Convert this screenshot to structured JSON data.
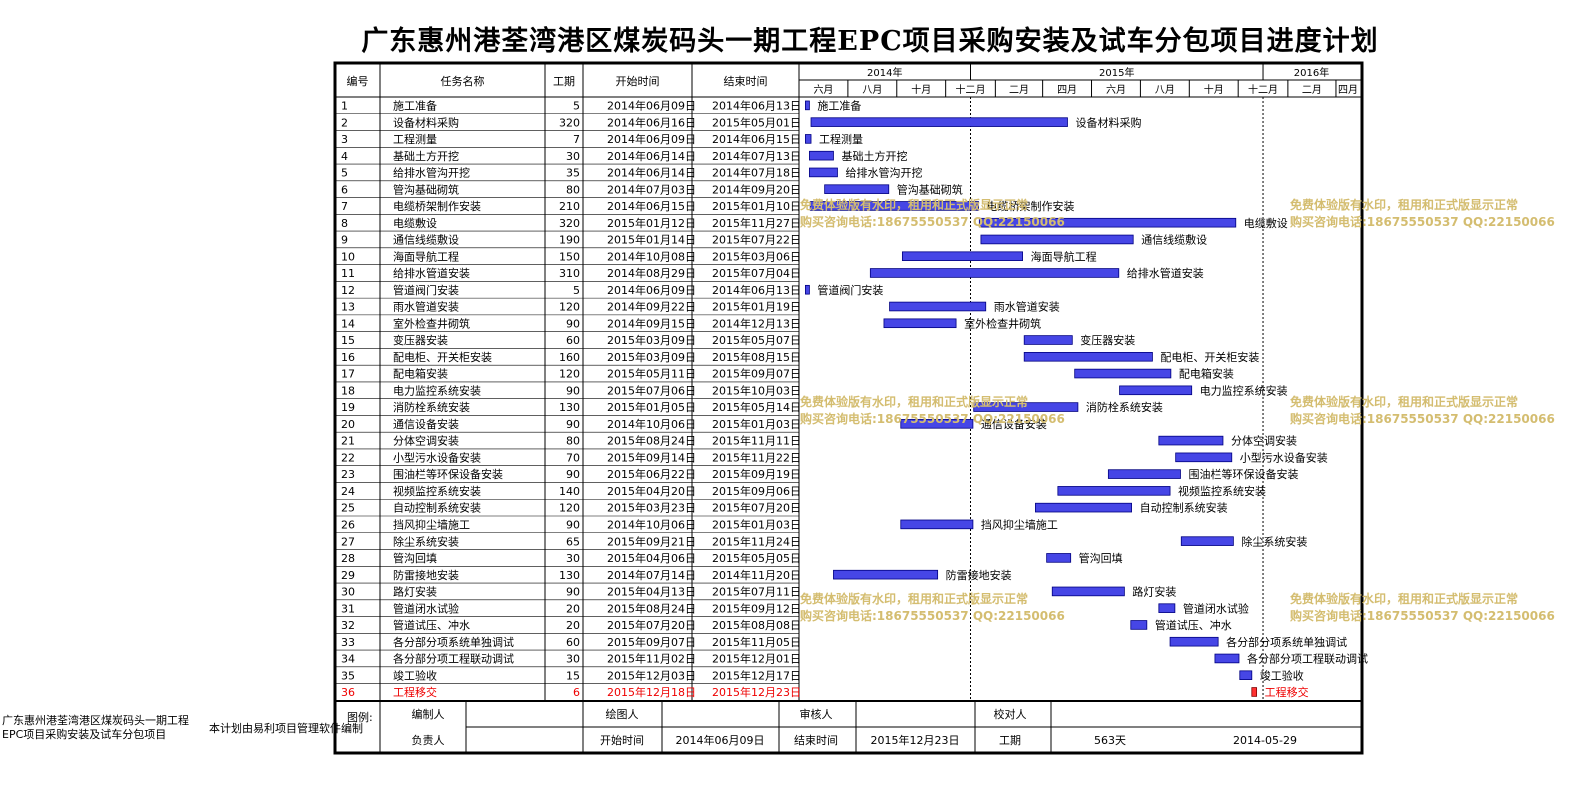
{
  "title": "广东惠州港荃湾港区煤炭码头一期工程EPC项目采购安装及试车分包项目进度计划",
  "headers": {
    "id": "编号",
    "name": "任务名称",
    "duration": "工期",
    "start": "开始时间",
    "end": "结束时间"
  },
  "chart_data": {
    "type": "gantt",
    "years": [
      {
        "label": "2014年",
        "from": "2014-06-01",
        "to": "2015-01-01"
      },
      {
        "label": "2015年",
        "from": "2015-01-01",
        "to": "2016-01-01"
      },
      {
        "label": "2016年",
        "from": "2016-01-01",
        "to": "2016-05-01"
      }
    ],
    "months": [
      {
        "label": "六月",
        "from": "2014-06-01",
        "to": "2014-08-01"
      },
      {
        "label": "八月",
        "from": "2014-08-01",
        "to": "2014-10-01"
      },
      {
        "label": "十月",
        "from": "2014-10-01",
        "to": "2014-12-01"
      },
      {
        "label": "十二月",
        "from": "2014-12-01",
        "to": "2015-02-01"
      },
      {
        "label": "二月",
        "from": "2015-02-01",
        "to": "2015-04-01"
      },
      {
        "label": "四月",
        "from": "2015-04-01",
        "to": "2015-06-01"
      },
      {
        "label": "六月",
        "from": "2015-06-01",
        "to": "2015-08-01"
      },
      {
        "label": "八月",
        "from": "2015-08-01",
        "to": "2015-10-01"
      },
      {
        "label": "十月",
        "from": "2015-10-01",
        "to": "2015-12-01"
      },
      {
        "label": "十二月",
        "from": "2015-12-01",
        "to": "2016-02-01"
      },
      {
        "label": "二月",
        "from": "2016-02-01",
        "to": "2016-04-01"
      },
      {
        "label": "四月",
        "from": "2016-04-01",
        "to": "2016-05-01"
      }
    ],
    "tasks": [
      {
        "id": "1",
        "name": "施工准备",
        "duration": 5,
        "start": "2014年06月09日",
        "end": "2014年06月13日"
      },
      {
        "id": "2",
        "name": "设备材料采购",
        "duration": 320,
        "start": "2014年06月16日",
        "end": "2015年05月01日"
      },
      {
        "id": "3",
        "name": "工程测量",
        "duration": 7,
        "start": "2014年06月09日",
        "end": "2014年06月15日"
      },
      {
        "id": "4",
        "name": "基础土方开挖",
        "duration": 30,
        "start": "2014年06月14日",
        "end": "2014年07月13日"
      },
      {
        "id": "5",
        "name": "给排水管沟开挖",
        "duration": 35,
        "start": "2014年06月14日",
        "end": "2014年07月18日"
      },
      {
        "id": "6",
        "name": "管沟基础砌筑",
        "duration": 80,
        "start": "2014年07月03日",
        "end": "2014年09月20日"
      },
      {
        "id": "7",
        "name": "电缆桥架制作安装",
        "duration": 210,
        "start": "2014年06月15日",
        "end": "2015年01月10日"
      },
      {
        "id": "8",
        "name": "电缆敷设",
        "duration": 320,
        "start": "2015年01月12日",
        "end": "2015年11月27日"
      },
      {
        "id": "9",
        "name": "通信线缆敷设",
        "duration": 190,
        "start": "2015年01月14日",
        "end": "2015年07月22日"
      },
      {
        "id": "10",
        "name": "海面导航工程",
        "duration": 150,
        "start": "2014年10月08日",
        "end": "2015年03月06日"
      },
      {
        "id": "11",
        "name": "给排水管道安装",
        "duration": 310,
        "start": "2014年08月29日",
        "end": "2015年07月04日"
      },
      {
        "id": "12",
        "name": "管道阀门安装",
        "duration": 5,
        "start": "2014年06月09日",
        "end": "2014年06月13日"
      },
      {
        "id": "13",
        "name": "雨水管道安装",
        "duration": 120,
        "start": "2014年09月22日",
        "end": "2015年01月19日"
      },
      {
        "id": "14",
        "name": "室外检查井砌筑",
        "duration": 90,
        "start": "2014年09月15日",
        "end": "2014年12月13日"
      },
      {
        "id": "15",
        "name": "变压器安装",
        "duration": 60,
        "start": "2015年03月09日",
        "end": "2015年05月07日"
      },
      {
        "id": "16",
        "name": "配电柜、开关柜安装",
        "duration": 160,
        "start": "2015年03月09日",
        "end": "2015年08月15日"
      },
      {
        "id": "17",
        "name": "配电箱安装",
        "duration": 120,
        "start": "2015年05月11日",
        "end": "2015年09月07日"
      },
      {
        "id": "18",
        "name": "电力监控系统安装",
        "duration": 90,
        "start": "2015年07月06日",
        "end": "2015年10月03日"
      },
      {
        "id": "19",
        "name": "消防栓系统安装",
        "duration": 130,
        "start": "2015年01月05日",
        "end": "2015年05月14日"
      },
      {
        "id": "20",
        "name": "通信设备安装",
        "duration": 90,
        "start": "2014年10月06日",
        "end": "2015年01月03日"
      },
      {
        "id": "21",
        "name": "分体空调安装",
        "duration": 80,
        "start": "2015年08月24日",
        "end": "2015年11月11日"
      },
      {
        "id": "22",
        "name": "小型污水设备安装",
        "duration": 70,
        "start": "2015年09月14日",
        "end": "2015年11月22日"
      },
      {
        "id": "23",
        "name": "围油栏等环保设备安装",
        "duration": 90,
        "start": "2015年06月22日",
        "end": "2015年09月19日"
      },
      {
        "id": "24",
        "name": "视频监控系统安装",
        "duration": 140,
        "start": "2015年04月20日",
        "end": "2015年09月06日"
      },
      {
        "id": "25",
        "name": "自动控制系统安装",
        "duration": 120,
        "start": "2015年03月23日",
        "end": "2015年07月20日"
      },
      {
        "id": "26",
        "name": "挡风抑尘墙施工",
        "duration": 90,
        "start": "2014年10月06日",
        "end": "2015年01月03日"
      },
      {
        "id": "27",
        "name": "除尘系统安装",
        "duration": 65,
        "start": "2015年09月21日",
        "end": "2015年11月24日"
      },
      {
        "id": "28",
        "name": "管沟回填",
        "duration": 30,
        "start": "2015年04月06日",
        "end": "2015年05月05日"
      },
      {
        "id": "29",
        "name": "防雷接地安装",
        "duration": 130,
        "start": "2014年07月14日",
        "end": "2014年11月20日"
      },
      {
        "id": "30",
        "name": "路灯安装",
        "duration": 90,
        "start": "2015年04月13日",
        "end": "2015年07月11日"
      },
      {
        "id": "31",
        "name": "管道闭水试验",
        "duration": 20,
        "start": "2015年08月24日",
        "end": "2015年09月12日"
      },
      {
        "id": "32",
        "name": "管道试压、冲水",
        "duration": 20,
        "start": "2015年07月20日",
        "end": "2015年08月08日"
      },
      {
        "id": "33",
        "name": "各分部分项系统单独调试",
        "duration": 60,
        "start": "2015年09月07日",
        "end": "2015年11月05日"
      },
      {
        "id": "34",
        "name": "各分部分项工程联动调试",
        "duration": 30,
        "start": "2015年11月02日",
        "end": "2015年12月01日"
      },
      {
        "id": "35",
        "name": "竣工验收",
        "duration": 15,
        "start": "2015年12月03日",
        "end": "2015年12月17日"
      },
      {
        "id": "36",
        "name": "工程移交",
        "duration": 6,
        "start": "2015年12月18日",
        "end": "2015年12月23日",
        "milestone": true
      }
    ],
    "colors": {
      "bar_fill": "#4646e6",
      "bar_stroke": "#000080",
      "milestone_fill": "#ff3030",
      "milestone_text": "#ee0000",
      "watermark": "#d4bd70"
    }
  },
  "footer": {
    "legend_label": "图例:",
    "left_note": "广东惠州港荃湾港区煤炭码头一期工程EPC项目采购安装及试车分包项目",
    "note": "本计划由易利项目管理软件编制",
    "row1": [
      "编制人",
      "",
      "绘图人",
      "",
      "审核人",
      "",
      "校对人",
      ""
    ],
    "row2_labels": {
      "leader": "负责人",
      "start": "开始时间",
      "end": "结束时间",
      "duration": "工期"
    },
    "row2_values": {
      "leader": "",
      "start": "2014年06月09日",
      "end": "2015年12月23日",
      "duration": "563天",
      "date": "2014-05-29"
    }
  },
  "watermark": [
    "免费体验版有水印，租用和正式版显示正常",
    "购买咨询电话:18675550537 QQ:22150066"
  ]
}
